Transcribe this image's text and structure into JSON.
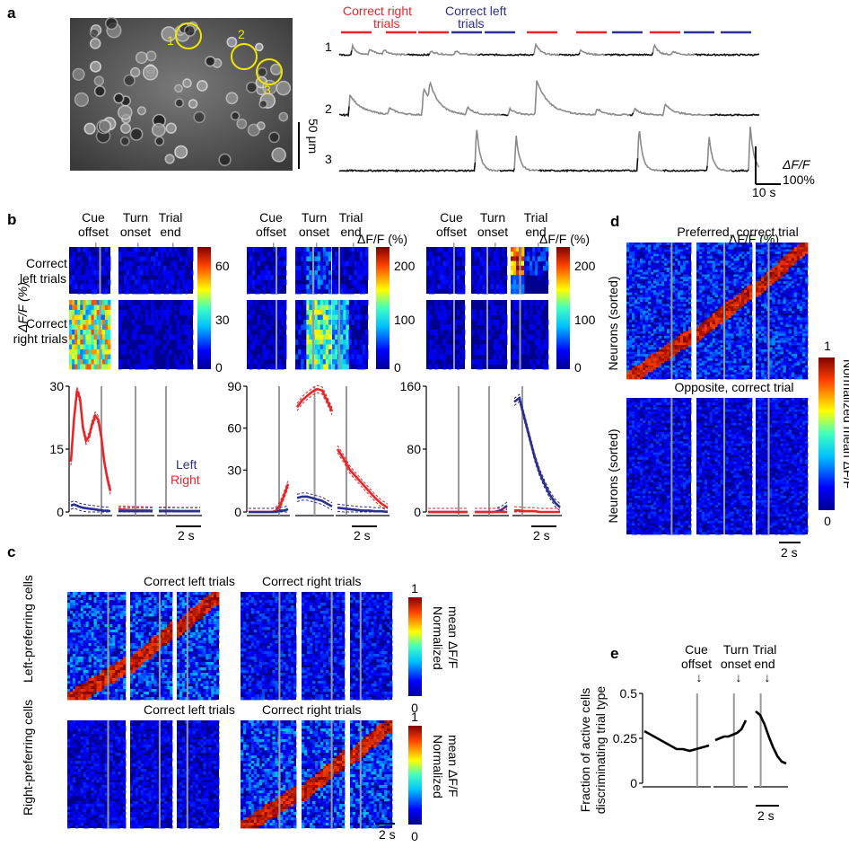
{
  "panel_labels": {
    "a": "a",
    "b": "b",
    "c": "c",
    "d": "d",
    "e": "e"
  },
  "colors": {
    "right": "#e8262a",
    "left": "#2b2f8f",
    "trace_dark": "#111111",
    "trace_active": "#8a8a8a",
    "roi": "#f3e600",
    "marker": "#999999"
  },
  "panel_a": {
    "legend_right": [
      "Correct right",
      "trials"
    ],
    "legend_left": [
      "Correct left",
      "trials"
    ],
    "trace_labels": [
      "1",
      "2",
      "3"
    ],
    "roi_labels": [
      "1",
      "2",
      "3"
    ],
    "scale_space": "50 μm",
    "scale_time": "10 s",
    "scale_amp_label": "ΔF/F",
    "scale_amp_value": "100%",
    "trial_sequence": [
      "right",
      "right",
      "right",
      "left",
      "left",
      "right",
      "right",
      "left",
      "right",
      "left",
      "left"
    ]
  },
  "markers": {
    "cue": [
      "Cue",
      "offset"
    ],
    "turn": [
      "Turn",
      "onset"
    ],
    "end": [
      "Trial",
      "end"
    ],
    "arrow": "↓"
  },
  "panel_b": {
    "row_labels": [
      [
        "Correct",
        "left trials"
      ],
      [
        "Correct",
        "right trials"
      ]
    ],
    "colorbar_title": "ΔF/F (%)",
    "colorbar_ticks": [
      [
        "60",
        "30",
        "0"
      ],
      [
        "200",
        "100",
        "0"
      ],
      [
        "200",
        "100",
        "0"
      ]
    ],
    "ylabel": "ΔF/F (%)",
    "legend_left": "Left",
    "legend_right": "Right",
    "scale": "2 s"
  },
  "panel_c": {
    "col_labels": [
      "Correct left trials",
      "Correct right trials"
    ],
    "row_labels": [
      "Left-preferring cells",
      "Right-preferring cells"
    ],
    "colorbar_ticks": [
      "1",
      "0"
    ],
    "colorbar_label": [
      "Normalized",
      "mean ΔF/F"
    ],
    "scale": "2 s"
  },
  "panel_d": {
    "title_top": "Preferred, correct trial",
    "title_bottom": "Opposite, correct trial",
    "ylabel": "Neurons (sorted)",
    "colorbar_ticks": [
      "1",
      "0"
    ],
    "colorbar_label": "Normalized mean ΔF/F",
    "scale": "2 s"
  },
  "panel_e": {
    "ylabel_1": "Fraction of active cells",
    "ylabel_2": "discriminating trial type",
    "yticks": [
      "0.5",
      "0.25",
      "0"
    ],
    "scale": "2 s"
  },
  "chart_data": [
    {
      "type": "line",
      "panel": "b-1",
      "ylim": [
        0,
        30
      ],
      "yticks": [
        0,
        15,
        30
      ],
      "series": [
        {
          "name": "Right",
          "segments": [
            {
              "window": "cue",
              "values": [
                12,
                22,
                29,
                27,
                20,
                17,
                18,
                21,
                23,
                22,
                18,
                12,
                8,
                5
              ]
            },
            {
              "window": "turn",
              "values": [
                0.6,
                0.5,
                0.4,
                0.4,
                0.3
              ]
            },
            {
              "window": "end",
              "values": [
                0.3,
                0.3,
                0.2,
                0.2,
                0.2
              ]
            }
          ]
        },
        {
          "name": "Left",
          "segments": [
            {
              "window": "cue",
              "values": [
                1.5,
                1.8,
                1.5,
                1.2,
                1.0,
                0.9,
                0.8,
                0.7,
                0.6,
                0.5,
                0.4,
                0.3,
                0.3,
                0.2
              ]
            },
            {
              "window": "turn",
              "values": [
                0.2,
                0.2,
                0.2,
                0.2,
                0.2
              ]
            },
            {
              "window": "end",
              "values": [
                0.2,
                0.2,
                0.2,
                0.2,
                0.2
              ]
            }
          ]
        }
      ]
    },
    {
      "type": "line",
      "panel": "b-2",
      "ylim": [
        0,
        90
      ],
      "yticks": [
        0,
        30,
        60,
        90
      ],
      "series": [
        {
          "name": "Right",
          "segments": [
            {
              "window": "cue",
              "values": [
                0,
                0,
                0,
                0,
                0,
                0,
                0,
                1,
                5,
                12,
                20
              ]
            },
            {
              "window": "turn",
              "values": [
                75,
                80,
                83,
                86,
                88,
                87,
                80,
                72
              ]
            },
            {
              "window": "end",
              "values": [
                45,
                38,
                30,
                25,
                20,
                15,
                10,
                6,
                3
              ]
            }
          ]
        },
        {
          "name": "Left",
          "segments": [
            {
              "window": "cue",
              "values": [
                0,
                0,
                0,
                0,
                0,
                0,
                0,
                0,
                1,
                1,
                2
              ]
            },
            {
              "window": "turn",
              "values": [
                10,
                11,
                11,
                10,
                9,
                8,
                6,
                4
              ]
            },
            {
              "window": "end",
              "values": [
                3,
                2.5,
                2,
                1.5,
                1,
                1,
                0.5,
                0.5,
                0
              ]
            }
          ]
        }
      ]
    },
    {
      "type": "line",
      "panel": "b-3",
      "ylim": [
        0,
        160
      ],
      "yticks": [
        0,
        80,
        160
      ],
      "series": [
        {
          "name": "Left",
          "segments": [
            {
              "window": "cue",
              "values": [
                0,
                0,
                0,
                0,
                0,
                0,
                0,
                0,
                0,
                0
              ]
            },
            {
              "window": "turn",
              "values": [
                0,
                0,
                0,
                0,
                2,
                8
              ]
            },
            {
              "window": "end",
              "values": [
                140,
                145,
                120,
                95,
                70,
                50,
                35,
                22,
                12,
                6
              ]
            }
          ]
        },
        {
          "name": "Right",
          "segments": [
            {
              "window": "cue",
              "values": [
                0,
                0,
                0,
                0,
                0,
                0,
                0,
                0,
                0,
                0
              ]
            },
            {
              "window": "turn",
              "values": [
                0,
                0,
                0,
                0,
                0,
                0
              ]
            },
            {
              "window": "end",
              "values": [
                2,
                2,
                1,
                1,
                1,
                0,
                0,
                0,
                0,
                0
              ]
            }
          ]
        }
      ]
    },
    {
      "type": "line",
      "panel": "e",
      "ylim": [
        0,
        0.5
      ],
      "yticks": [
        0,
        0.25,
        0.5
      ],
      "series": [
        {
          "name": "",
          "segments": [
            {
              "window": "cue",
              "values": [
                0.29,
                0.27,
                0.25,
                0.23,
                0.21,
                0.19,
                0.19,
                0.18,
                0.19,
                0.2,
                0.21
              ]
            },
            {
              "window": "turn",
              "values": [
                0.24,
                0.25,
                0.26,
                0.26,
                0.27,
                0.28,
                0.3,
                0.35
              ]
            },
            {
              "window": "end",
              "values": [
                0.4,
                0.38,
                0.33,
                0.26,
                0.2,
                0.15,
                0.12,
                0.11
              ]
            }
          ]
        }
      ]
    }
  ]
}
